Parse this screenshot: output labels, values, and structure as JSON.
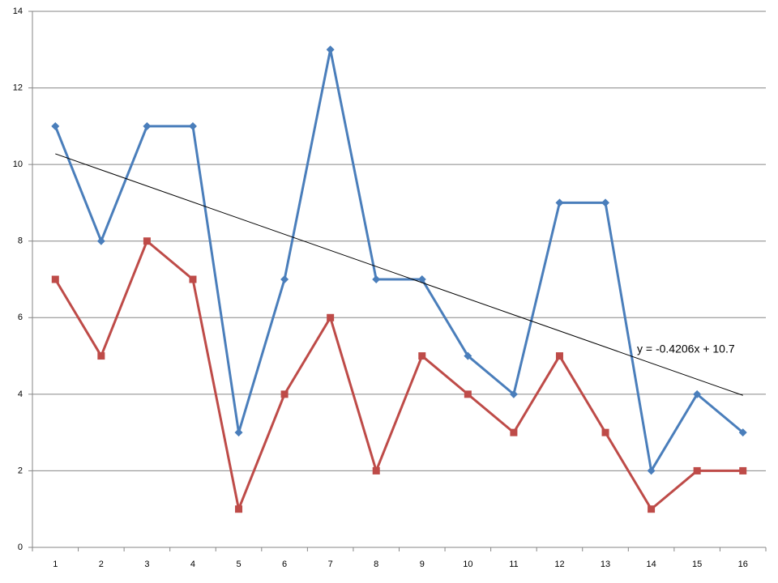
{
  "chart_data": {
    "type": "line",
    "categories": [
      "1",
      "2",
      "3",
      "4",
      "5",
      "6",
      "7",
      "8",
      "9",
      "10",
      "11",
      "12",
      "13",
      "14",
      "15",
      "16"
    ],
    "series": [
      {
        "color": "#4a7ebb",
        "marker": "diamond",
        "values": [
          11,
          8,
          11,
          11,
          3,
          7,
          13,
          7,
          7,
          5,
          4,
          9,
          9,
          2,
          4,
          3
        ]
      },
      {
        "color": "#be4b48",
        "marker": "square",
        "values": [
          7,
          5,
          8,
          7,
          1,
          4,
          6,
          2,
          5,
          4,
          3,
          5,
          3,
          1,
          2,
          2
        ]
      }
    ],
    "trendline": {
      "series": 0,
      "label": "y = -0.4206x + 10.7",
      "slope": -0.4206,
      "intercept": 10.7,
      "color": "#000000"
    },
    "ylim": [
      0,
      14
    ],
    "yticks": [
      0,
      2,
      4,
      6,
      8,
      10,
      12,
      14
    ],
    "grid": true
  }
}
